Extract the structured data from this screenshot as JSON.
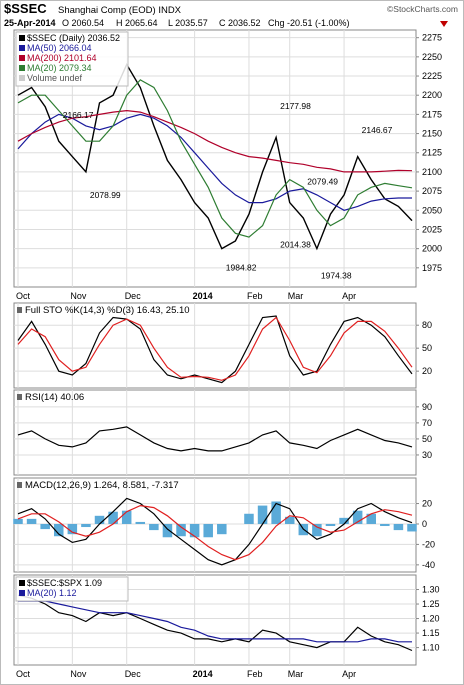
{
  "header": {
    "symbol": "$SSEC",
    "name": "Shanghai Comp (EOD) INDX",
    "credit": "©StockCharts.com",
    "quote": [
      "25-Apr-2014",
      "O 2060.54",
      "H 2065.64",
      "L 2035.57",
      "C 2036.52",
      "Chg -20.51 (-1.00%)"
    ]
  },
  "chart_data": [
    {
      "type": "line",
      "grid": true,
      "categories": [
        "Oct",
        null,
        null,
        null,
        "Nov",
        null,
        null,
        null,
        "Dec",
        null,
        null,
        null,
        null,
        "2014",
        null,
        null,
        null,
        "Feb",
        null,
        null,
        "Mar",
        null,
        null,
        null,
        "Apr",
        null,
        null,
        null,
        null,
        null
      ],
      "ylim": [
        1950,
        2285
      ],
      "yticks": [
        1975,
        2000,
        2025,
        2050,
        2075,
        2100,
        2125,
        2150,
        2175,
        2200,
        2225,
        2250,
        2275
      ],
      "series": [
        {
          "name": "$SSEC (Daily) 2036.52",
          "color": "#000000",
          "values": [
            2200,
            2210,
            2185,
            2140,
            2120,
            2100,
            2190,
            2200,
            2240,
            2210,
            2160,
            2115,
            2090,
            2060,
            2040,
            2000,
            2010,
            2045,
            2100,
            2145,
            2060,
            2040,
            2000,
            2045,
            2070,
            2120,
            2090,
            2065,
            2055,
            2036.52
          ]
        },
        {
          "name": "MA(50) 2066.04",
          "color": "#1a1a9c",
          "values": [
            2130,
            2150,
            2165,
            2175,
            2170,
            2160,
            2155,
            2160,
            2170,
            2175,
            2170,
            2160,
            2145,
            2125,
            2105,
            2085,
            2070,
            2060,
            2060,
            2065,
            2075,
            2078,
            2070,
            2060,
            2050,
            2055,
            2062,
            2065,
            2066,
            2066.04
          ]
        },
        {
          "name": "MA(200) 2101.64",
          "color": "#b0002a",
          "values": [
            2140,
            2150,
            2158,
            2165,
            2170,
            2172,
            2175,
            2178,
            2180,
            2178,
            2172,
            2165,
            2158,
            2150,
            2140,
            2132,
            2125,
            2120,
            2118,
            2115,
            2112,
            2110,
            2106,
            2104,
            2100,
            2100,
            2100,
            2101,
            2102,
            2101.64
          ]
        },
        {
          "name": "MA(20) 2079.34",
          "color": "#2e7d32",
          "values": [
            2190,
            2200,
            2200,
            2180,
            2160,
            2140,
            2140,
            2160,
            2200,
            2220,
            2210,
            2180,
            2140,
            2110,
            2080,
            2040,
            2020,
            2015,
            2030,
            2070,
            2090,
            2080,
            2050,
            2030,
            2040,
            2070,
            2080,
            2085,
            2082,
            2079.34
          ]
        }
      ],
      "volume_label": "Volume undef",
      "annotations": [
        {
          "x": 3,
          "value": 2166.17
        },
        {
          "x": 5,
          "value": 2078.99
        },
        {
          "x": 19,
          "value": 2177.98
        },
        {
          "x": 25,
          "value": 2146.67
        },
        {
          "x": 21,
          "value": 2079.49
        },
        {
          "x": 19,
          "value": 2014.38
        },
        {
          "x": 15,
          "value": 1984.82
        },
        {
          "x": 22,
          "value": 1974.38
        }
      ]
    },
    {
      "type": "line",
      "grid": true,
      "title": "Full STO %K(14,3) %D(3) 16.43, 25.10",
      "ylim": [
        -2,
        109
      ],
      "yticks": [
        20,
        50,
        80
      ],
      "series": [
        {
          "color": "#000000",
          "values": [
            60,
            85,
            55,
            20,
            15,
            30,
            70,
            90,
            88,
            75,
            35,
            15,
            10,
            15,
            10,
            5,
            20,
            55,
            90,
            92,
            40,
            15,
            20,
            55,
            85,
            90,
            80,
            65,
            40,
            16.43
          ]
        },
        {
          "color": "#e02020",
          "values": [
            55,
            75,
            65,
            35,
            20,
            25,
            55,
            80,
            88,
            80,
            50,
            25,
            12,
            13,
            12,
            8,
            15,
            40,
            75,
            90,
            60,
            25,
            18,
            40,
            70,
            85,
            85,
            72,
            50,
            25.1
          ]
        }
      ]
    },
    {
      "type": "line",
      "grid": true,
      "title": "RSI(14) 40.06",
      "ylim": [
        5,
        111
      ],
      "yticks": [
        30,
        50,
        70,
        90
      ],
      "series": [
        {
          "color": "#000000",
          "values": [
            55,
            60,
            50,
            42,
            40,
            45,
            60,
            62,
            65,
            55,
            45,
            38,
            35,
            38,
            35,
            35,
            40,
            45,
            55,
            60,
            45,
            42,
            38,
            48,
            55,
            62,
            55,
            48,
            45,
            40.06
          ]
        }
      ]
    },
    {
      "type": "line",
      "grid": true,
      "title": "MACD(12,26,9) 1.264, 8.581, -7.317",
      "ylim": [
        -47,
        45
      ],
      "yticks": [
        -40,
        -20,
        0,
        20
      ],
      "series": [
        {
          "type": "bar",
          "color": "#5aaad8",
          "values": [
            5,
            5,
            -5,
            -12,
            -10,
            -3,
            8,
            12,
            13,
            2,
            -6,
            -13,
            -12,
            -13,
            -13,
            -10,
            0,
            10,
            18,
            22,
            7,
            -11,
            -12,
            -2,
            6,
            13,
            10,
            -2,
            -6,
            -7.317
          ]
        },
        {
          "color": "#000000",
          "values": [
            10,
            15,
            5,
            -10,
            -18,
            -15,
            0,
            12,
            25,
            20,
            10,
            -5,
            -15,
            -25,
            -35,
            -40,
            -35,
            -20,
            0,
            20,
            15,
            -5,
            -15,
            -10,
            0,
            15,
            20,
            12,
            6,
            1.264
          ]
        },
        {
          "color": "#e02020",
          "values": [
            5,
            10,
            10,
            2,
            -8,
            -12,
            -8,
            0,
            12,
            18,
            16,
            8,
            -3,
            -12,
            -22,
            -30,
            -35,
            -30,
            -18,
            -2,
            8,
            6,
            -3,
            -8,
            -6,
            2,
            10,
            14,
            12,
            8.581
          ]
        }
      ]
    },
    {
      "type": "line",
      "grid": true,
      "categories": [
        "Oct",
        null,
        null,
        null,
        "Nov",
        null,
        null,
        null,
        "Dec",
        null,
        null,
        null,
        null,
        "2014",
        null,
        null,
        null,
        "Feb",
        null,
        null,
        "Mar",
        null,
        null,
        null,
        "Apr",
        null,
        null,
        null,
        null,
        null
      ],
      "ylim": [
        1.04,
        1.35
      ],
      "yticks": [
        {
          "value": 1.1,
          "label": "1.10"
        },
        1.15,
        {
          "value": 1.2,
          "label": "1.20"
        },
        1.25,
        {
          "value": 1.3,
          "label": "1.30"
        }
      ],
      "series": [
        {
          "name": "$SSEC:$SPX 1.09",
          "color": "#000000",
          "values": [
            1.28,
            1.27,
            1.25,
            1.22,
            1.21,
            1.19,
            1.22,
            1.21,
            1.22,
            1.2,
            1.18,
            1.16,
            1.15,
            1.13,
            1.13,
            1.12,
            1.13,
            1.12,
            1.16,
            1.15,
            1.12,
            1.11,
            1.1,
            1.12,
            1.12,
            1.17,
            1.14,
            1.12,
            1.11,
            1.09
          ]
        },
        {
          "name": "MA(20) 1.12",
          "color": "#1a1a9c",
          "values": [
            1.26,
            1.26,
            1.26,
            1.25,
            1.24,
            1.23,
            1.22,
            1.22,
            1.22,
            1.21,
            1.2,
            1.19,
            1.17,
            1.16,
            1.14,
            1.13,
            1.13,
            1.13,
            1.13,
            1.13,
            1.13,
            1.13,
            1.12,
            1.12,
            1.12,
            1.12,
            1.13,
            1.13,
            1.12,
            1.12
          ]
        }
      ]
    }
  ]
}
